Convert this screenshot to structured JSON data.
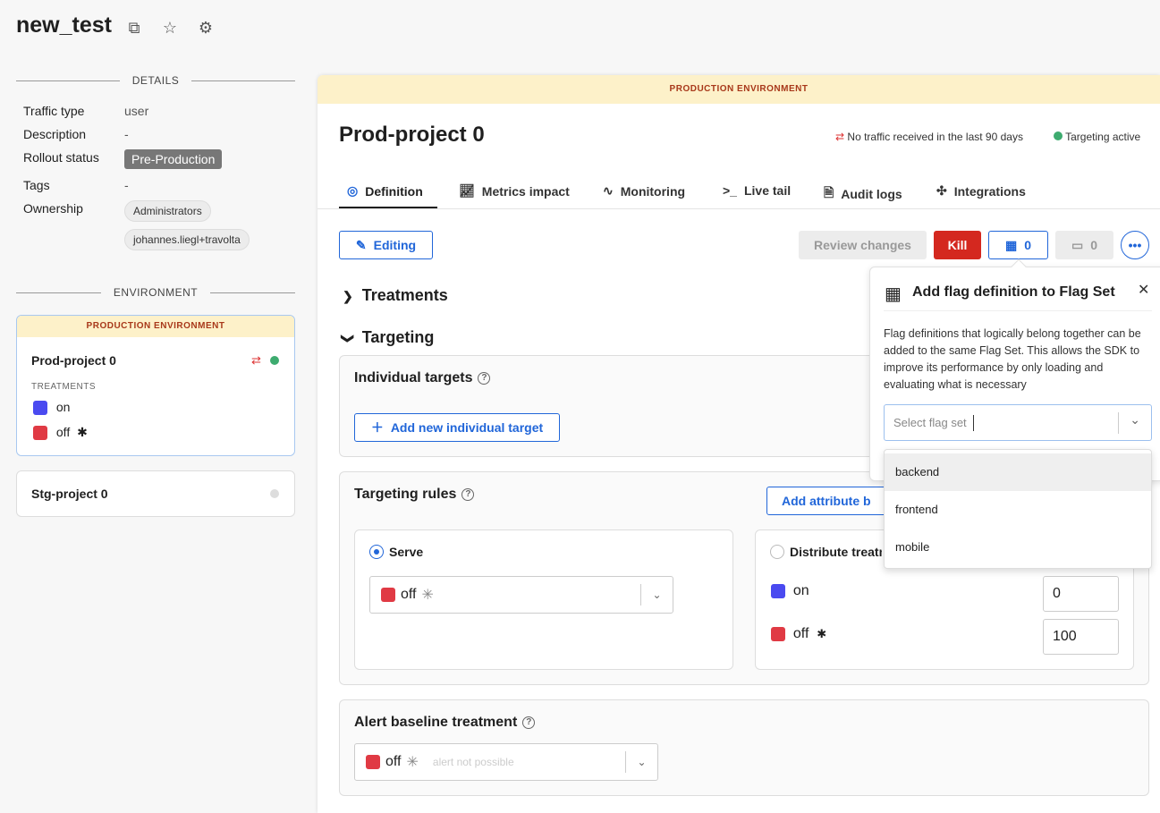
{
  "header": {
    "title": "new_test",
    "icons": [
      "copy-icon",
      "star-icon",
      "gear-icon"
    ]
  },
  "details": {
    "heading": "DETAILS",
    "rows": [
      {
        "label": "Traffic type",
        "value": "user"
      },
      {
        "label": "Description",
        "value": "-"
      },
      {
        "label": "Rollout status",
        "value": "Pre-Production"
      },
      {
        "label": "Tags",
        "value": "-"
      },
      {
        "label": "Ownership",
        "values": [
          "Administrators",
          "johannes.liegl+travolta"
        ]
      }
    ]
  },
  "environment": {
    "heading": "ENVIRONMENT",
    "cards": [
      {
        "banner": "PRODUCTION ENVIRONMENT",
        "name": "Prod-project 0",
        "treatments_label": "TREATMENTS",
        "treatments": [
          {
            "name": "on",
            "color": "#4a4af0"
          },
          {
            "name": "off",
            "color": "#e03a44",
            "default": true
          }
        ]
      },
      {
        "name": "Stg-project 0"
      }
    ]
  },
  "main": {
    "banner": "PRODUCTION ENVIRONMENT",
    "title": "Prod-project 0",
    "traffic_status": "No traffic received in the last 90 days",
    "targeting_status": "Targeting active",
    "tabs": [
      "Definition",
      "Metrics impact",
      "Monitoring",
      "Live tail",
      "Audit logs",
      "Integrations"
    ],
    "editing": "Editing",
    "review": "Review changes",
    "kill": "Kill",
    "flagsets_count": "0",
    "schedule_count": "0",
    "treatments": "Treatments",
    "targeting": "Targeting",
    "individual": {
      "title": "Individual targets",
      "add": "Add new individual target"
    },
    "rules": {
      "title": "Targeting rules",
      "add_attr": "Add attribute b",
      "serve": "Serve",
      "serve_value": "off",
      "distribute": "Distribute treatm",
      "dist": [
        {
          "name": "on",
          "value": "0"
        },
        {
          "name": "off",
          "value": "100"
        }
      ]
    },
    "alert": {
      "title": "Alert baseline treatment",
      "value": "off",
      "hint": "alert not possible"
    }
  },
  "popover": {
    "title": "Add flag definition to Flag Set",
    "body": "Flag definitions that logically belong together can be added to the same Flag Set. This allows the SDK to improve its performance by only loading and evaluating what is necessary",
    "placeholder": "Select flag set",
    "options": [
      "backend",
      "frontend",
      "mobile"
    ]
  }
}
